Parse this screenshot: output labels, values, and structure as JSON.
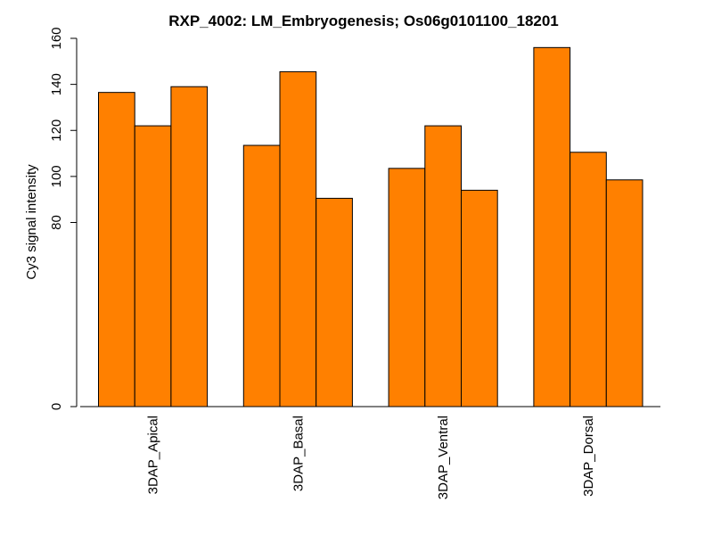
{
  "chart_data": {
    "type": "bar",
    "title": "RXP_4002: LM_Embryogenesis; Os06g0101100_18201",
    "ylabel": "Cy3 signal intensity",
    "xlabel": "",
    "categories": [
      "3DAP_Apical",
      "3DAP_Basal",
      "3DAP_Ventral",
      "3DAP_Dorsal"
    ],
    "values": [
      [
        136.5,
        122,
        139
      ],
      [
        113.5,
        145.5,
        90.5
      ],
      [
        103.5,
        122,
        94
      ],
      [
        156,
        110.5,
        98.5
      ]
    ],
    "bar_color": "#ff8000",
    "ylim": [
      0,
      160
    ],
    "yticks": [
      0,
      80,
      100,
      120,
      140,
      160
    ],
    "ytick_labels": [
      "0",
      "80",
      "100",
      "120",
      "140",
      "160"
    ],
    "grid": false,
    "legend": "none"
  }
}
